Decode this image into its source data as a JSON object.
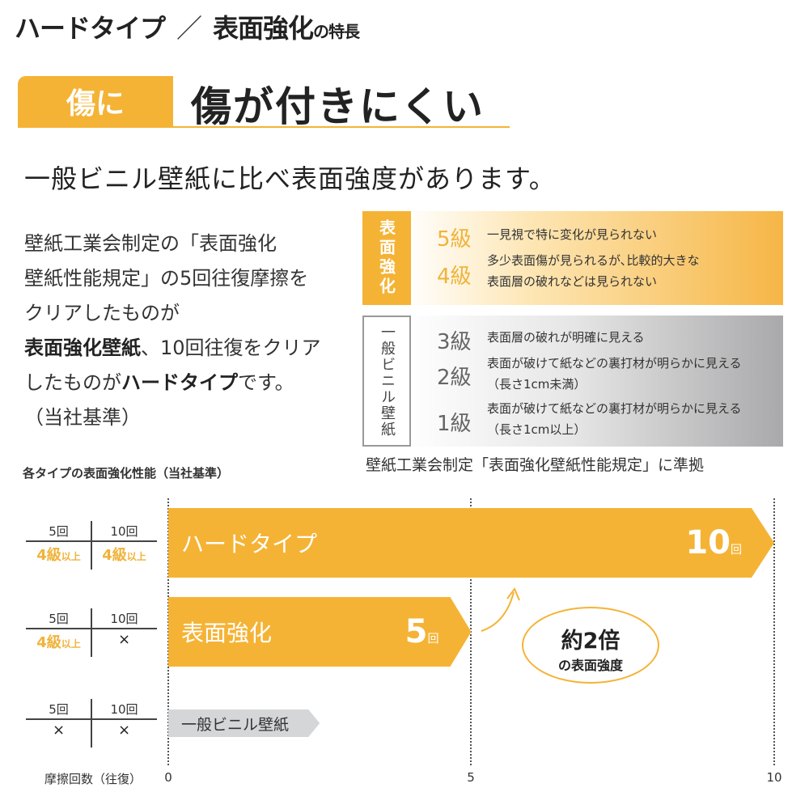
{
  "title": {
    "part1": "ハードタイプ",
    "slash": "／",
    "part2": "表面強化",
    "suffix": "の特長"
  },
  "tag": "傷に",
  "headline": "傷が付きにくい",
  "lead": "一般ビニル壁紙に比べ表面強度があります。",
  "body": {
    "line1": "壁紙工業会制定の「表面強化",
    "line2": "壁紙性能規定」の5回往復摩擦を",
    "line3": "クリアしたものが",
    "bold1": "表面強化壁紙",
    "line4": "、10回往復をクリア",
    "line5": "したものが",
    "bold2": "ハードタイプ",
    "line6": "です。",
    "line7": "（当社基準）"
  },
  "grades": {
    "reinforced_label": "表面強化",
    "vinyl_label": "一般ビニル壁紙",
    "items": [
      {
        "grade": "5級",
        "desc1": "一見視で特に変化が見られない",
        "desc2": ""
      },
      {
        "grade": "4級",
        "desc1": "多少表面傷が見られるが､比較的大きな",
        "desc2": "表面層の破れなどは見られない"
      },
      {
        "grade": "3級",
        "desc1": "表面層の破れが明確に見える",
        "desc2": ""
      },
      {
        "grade": "2級",
        "desc1": "表面が破けて紙などの裏打材が明らかに見える",
        "desc2": "（長さ1cm未満）"
      },
      {
        "grade": "1級",
        "desc1": "表面が破けて紙などの裏打材が明らかに見える",
        "desc2": "（長さ1cm以上）"
      }
    ],
    "standard": "壁紙工業会制定「表面強化壁紙性能規定」に準拠"
  },
  "chart_data": {
    "type": "bar",
    "orientation": "horizontal",
    "title": "各タイプの表面強化性能（当社基準）",
    "xlabel": "摩擦回数（往復）",
    "xlim": [
      0,
      10
    ],
    "xticks": [
      "0",
      "5",
      "10"
    ],
    "grid": "vertical dotted at 0, 5, 10",
    "colors": {
      "orange": "#f5b335",
      "gray": "#d5d6d8"
    },
    "categories": [
      "ハードタイプ",
      "表面強化",
      "一般ビニル壁紙"
    ],
    "values": [
      10,
      5,
      2.5
    ],
    "value_labels": [
      {
        "num": "10",
        "unit": "回"
      },
      {
        "num": "5",
        "unit": "回"
      },
      {
        "num": "",
        "unit": ""
      }
    ],
    "tables": [
      {
        "h1": "5回",
        "h2": "10回",
        "v1_grade": "4級",
        "v1_sfx": "以上",
        "v2_grade": "4級",
        "v2_sfx": "以上",
        "v2": ""
      },
      {
        "h1": "5回",
        "h2": "10回",
        "v1_grade": "4級",
        "v1_sfx": "以上",
        "v2_grade": "",
        "v2_sfx": "",
        "v2": "×"
      },
      {
        "h1": "5回",
        "h2": "10回",
        "v1": "×",
        "v2": "×"
      }
    ],
    "annotation": {
      "line1": "約2倍",
      "line2": "の表面強度"
    }
  }
}
